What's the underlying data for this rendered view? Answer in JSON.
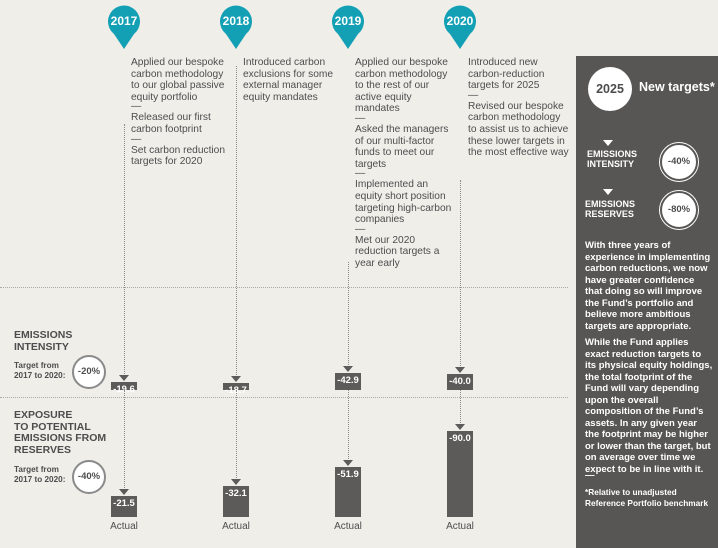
{
  "colors": {
    "accent": "#14a0b4",
    "bar": "#5c5b5a",
    "panel": "#575655",
    "background": "#efeee9"
  },
  "timeline": [
    {
      "year": "2017",
      "items": [
        "Applied our bespoke carbon methodology to our global passive equity portfolio",
        "Released our first carbon footprint",
        "Set carbon reduction targets for 2020"
      ]
    },
    {
      "year": "2018",
      "items": [
        "Introduced carbon exclusions for some external manager equity mandates"
      ]
    },
    {
      "year": "2019",
      "items": [
        "Applied our bespoke carbon methodology to the rest of our active equity mandates",
        "Asked the managers of our multi-factor funds to meet our targets",
        "Implemented an equity short position targeting high-carbon companies",
        "Met our 2020 reduction targets a year early"
      ]
    },
    {
      "year": "2020",
      "items": [
        "Introduced new carbon-reduction targets for 2025",
        "Revised our bespoke carbon methodology to assist us to achieve these lower targets in the most effective way"
      ]
    }
  ],
  "separator": "—",
  "intensity": {
    "title_lines": [
      "EMISSIONS",
      "INTENSITY"
    ],
    "target_label_lines": [
      "Target from",
      "2017 to 2020:"
    ],
    "target": "-20%",
    "values": [
      "-19.6",
      "-18.7",
      "-42.9",
      "-40.0"
    ],
    "value_numbers": [
      -19.6,
      -18.7,
      -42.9,
      -40.0
    ]
  },
  "reserves": {
    "title_lines": [
      "EXPOSURE",
      "TO POTENTIAL",
      "EMISSIONS FROM",
      "RESERVES"
    ],
    "target_label_lines": [
      "Target from",
      "2017 to 2020:"
    ],
    "target": "-40%",
    "values": [
      "-21.5",
      "-32.1",
      "-51.9",
      "-90.0"
    ],
    "value_numbers": [
      -21.5,
      -32.1,
      -51.9,
      -90.0
    ]
  },
  "actual_label": "Actual",
  "panel": {
    "year": "2025",
    "title": "New targets*",
    "intensity_lines": [
      "EMISSIONS",
      "INTENSITY"
    ],
    "intensity_target": "-40%",
    "reserves_lines": [
      "EMISSIONS",
      "RESERVES"
    ],
    "reserves_target": "-80%",
    "para1": "With three years of experience in implementing carbon reductions, we now have greater confidence that doing so will improve the Fund’s portfolio and believe more ambitious targets are appropriate.",
    "para2": "While the Fund applies exact reduction targets to its physical equity holdings, the total footprint of the Fund will vary depending upon the overall composition of the Fund’s assets. In any given year the footprint may be higher or lower than the target, but on average over time we expect to be in line with it.",
    "separator": "—",
    "footnote": "*Relative to unadjusted Reference Portfolio benchmark"
  }
}
